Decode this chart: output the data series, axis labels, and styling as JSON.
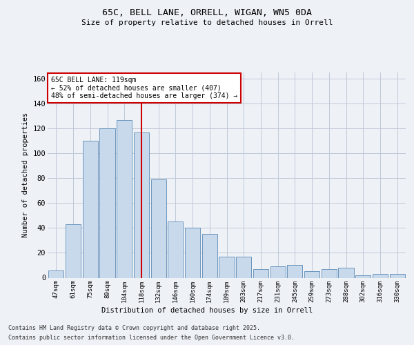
{
  "title_line1": "65C, BELL LANE, ORRELL, WIGAN, WN5 0DA",
  "title_line2": "Size of property relative to detached houses in Orrell",
  "xlabel": "Distribution of detached houses by size in Orrell",
  "ylabel": "Number of detached properties",
  "categories": [
    "47sqm",
    "61sqm",
    "75sqm",
    "89sqm",
    "104sqm",
    "118sqm",
    "132sqm",
    "146sqm",
    "160sqm",
    "174sqm",
    "189sqm",
    "203sqm",
    "217sqm",
    "231sqm",
    "245sqm",
    "259sqm",
    "273sqm",
    "288sqm",
    "302sqm",
    "316sqm",
    "330sqm"
  ],
  "values": [
    6,
    43,
    110,
    120,
    127,
    117,
    79,
    45,
    40,
    35,
    17,
    17,
    7,
    9,
    10,
    5,
    7,
    8,
    2,
    3,
    3
  ],
  "bar_color": "#c9d9ec",
  "bar_edge_color": "#5a8ab5",
  "vline_x": 5,
  "vline_color": "#cc0000",
  "annotation_text": "65C BELL LANE: 119sqm\n← 52% of detached houses are smaller (407)\n48% of semi-detached houses are larger (374) →",
  "annotation_box_color": "#ffffff",
  "annotation_box_edge_color": "#cc0000",
  "footer_line1": "Contains HM Land Registry data © Crown copyright and database right 2025.",
  "footer_line2": "Contains public sector information licensed under the Open Government Licence v3.0.",
  "ylim": [
    0,
    165
  ],
  "yticks": [
    0,
    20,
    40,
    60,
    80,
    100,
    120,
    140,
    160
  ],
  "background_color": "#eef2f7",
  "plot_background_color": "#eef2f7",
  "grid_color": "#c0c8d8"
}
